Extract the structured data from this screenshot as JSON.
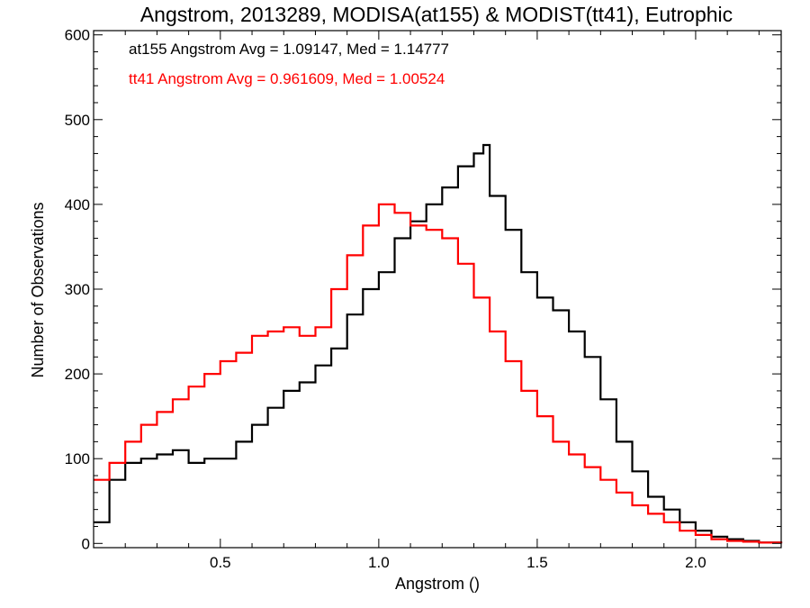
{
  "chart_data": {
    "type": "line",
    "title": "Angstrom, 2013289, MODISA(at155) & MODIST(tt41), Eutrophic",
    "xlabel": "Angstrom ()",
    "ylabel": "Number of Observations",
    "xlim": [
      0.1,
      2.27
    ],
    "ylim": [
      -5,
      605
    ],
    "xticks": [
      0.5,
      1.0,
      1.5,
      2.0
    ],
    "xtick_labels": [
      "0.5",
      "1.0",
      "1.5",
      "2.0"
    ],
    "yticks": [
      0,
      100,
      200,
      300,
      400,
      500,
      600
    ],
    "ytick_labels": [
      "0",
      "100",
      "200",
      "300",
      "400",
      "500",
      "600"
    ],
    "grid": false,
    "legend_position": "top-left",
    "annotations": [
      {
        "text": "at155 Angstrom Avg = 1.09147, Med = 1.14777",
        "color": "#000000"
      },
      {
        "text": "tt41 Angstrom Avg = 0.961609, Med = 1.00524",
        "color": "#ff0000"
      }
    ],
    "series": [
      {
        "color": "#000000",
        "step": "histogram",
        "x": [
          0.1,
          0.15,
          0.2,
          0.25,
          0.3,
          0.35,
          0.4,
          0.45,
          0.5,
          0.55,
          0.6,
          0.65,
          0.7,
          0.75,
          0.8,
          0.85,
          0.9,
          0.95,
          1.0,
          1.05,
          1.1,
          1.15,
          1.2,
          1.25,
          1.3,
          1.33,
          1.35,
          1.4,
          1.45,
          1.5,
          1.55,
          1.6,
          1.65,
          1.7,
          1.75,
          1.8,
          1.85,
          1.9,
          1.95,
          2.0,
          2.05,
          2.1,
          2.15,
          2.2,
          2.27
        ],
        "values": [
          25,
          75,
          95,
          100,
          105,
          110,
          95,
          100,
          100,
          120,
          140,
          160,
          180,
          190,
          210,
          230,
          270,
          300,
          320,
          360,
          380,
          400,
          420,
          445,
          460,
          470,
          410,
          370,
          320,
          290,
          275,
          250,
          220,
          170,
          120,
          85,
          55,
          40,
          25,
          15,
          8,
          5,
          3,
          1,
          0
        ]
      },
      {
        "color": "#ff0000",
        "step": "histogram",
        "x": [
          0.1,
          0.15,
          0.2,
          0.25,
          0.3,
          0.35,
          0.4,
          0.45,
          0.5,
          0.55,
          0.6,
          0.65,
          0.7,
          0.75,
          0.8,
          0.85,
          0.9,
          0.95,
          1.0,
          1.05,
          1.1,
          1.15,
          1.2,
          1.25,
          1.3,
          1.35,
          1.4,
          1.45,
          1.5,
          1.55,
          1.6,
          1.65,
          1.7,
          1.75,
          1.8,
          1.85,
          1.9,
          1.95,
          2.0,
          2.05,
          2.1,
          2.15,
          2.2,
          2.27
        ],
        "values": [
          75,
          95,
          120,
          140,
          155,
          170,
          185,
          200,
          215,
          225,
          245,
          250,
          255,
          245,
          255,
          300,
          340,
          375,
          400,
          390,
          375,
          370,
          360,
          330,
          290,
          250,
          215,
          180,
          150,
          120,
          105,
          90,
          75,
          60,
          45,
          35,
          25,
          15,
          10,
          5,
          3,
          2,
          1,
          0
        ]
      }
    ]
  }
}
